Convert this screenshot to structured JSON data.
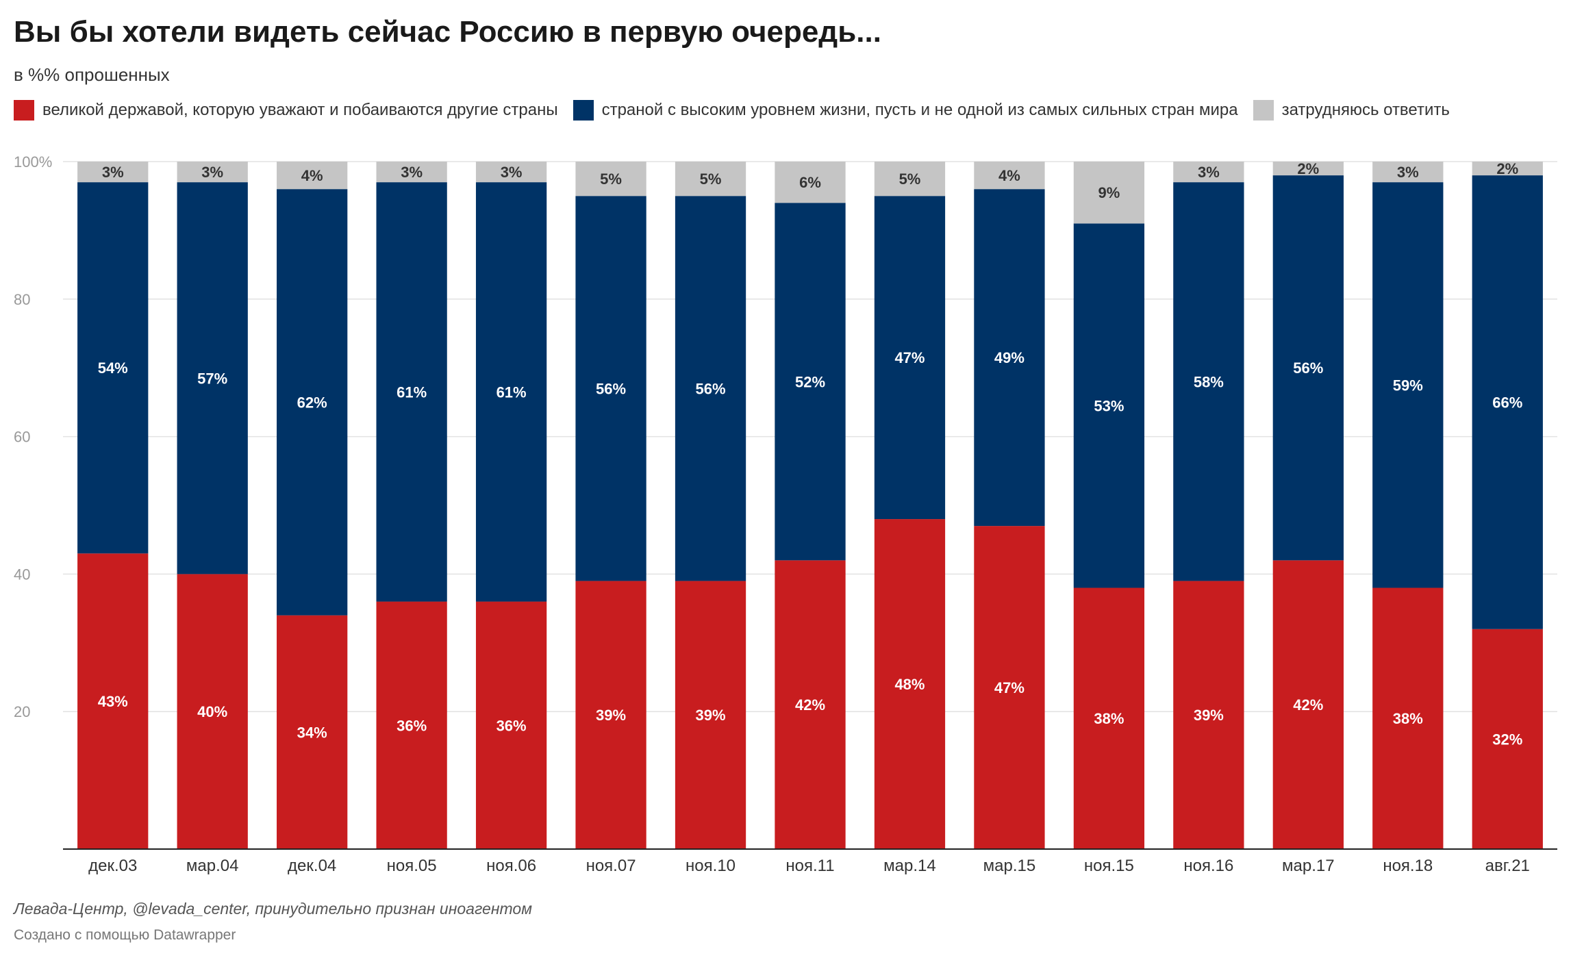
{
  "title": "Вы бы хотели видеть сейчас Россию в первую очередь...",
  "subtitle": "в %% опрошенных",
  "legend": [
    {
      "label": "великой державой, которую уважают и побаиваются другие страны",
      "color": "#c81d1f"
    },
    {
      "label": "страной с высоким уровнем жизни, пусть и не одной из самых сильных стран мира",
      "color": "#003366"
    },
    {
      "label": "затрудняюсь ответить",
      "color": "#c5c5c5"
    }
  ],
  "notes": "Левада-Центр, @levada_center, принудительно признан иноагентом",
  "credit": "Создано с помощью Datawrapper",
  "chart_data": {
    "type": "bar",
    "stacked": true,
    "categories": [
      "дек.03",
      "мар.04",
      "дек.04",
      "ноя.05",
      "ноя.06",
      "ноя.07",
      "ноя.10",
      "ноя.11",
      "мар.14",
      "мар.15",
      "ноя.15",
      "ноя.16",
      "мар.17",
      "ноя.18",
      "авг.21"
    ],
    "series": [
      {
        "name": "великой державой, которую уважают и побаиваются другие страны",
        "color": "#c81d1f",
        "values": [
          43,
          40,
          34,
          36,
          36,
          39,
          39,
          42,
          48,
          47,
          38,
          39,
          42,
          38,
          32
        ]
      },
      {
        "name": "страной с высоким уровнем жизни, пусть и не одной из самых сильных стран мира",
        "color": "#003366",
        "values": [
          54,
          57,
          62,
          61,
          61,
          56,
          56,
          52,
          47,
          49,
          53,
          58,
          56,
          59,
          66
        ]
      },
      {
        "name": "затрудняюсь ответить",
        "color": "#c5c5c5",
        "values": [
          3,
          3,
          4,
          3,
          3,
          5,
          5,
          6,
          5,
          4,
          9,
          3,
          2,
          3,
          2
        ]
      }
    ],
    "value_suffix": "%",
    "ylim": [
      0,
      100
    ],
    "yticks": [
      {
        "value": 20,
        "label": "20"
      },
      {
        "value": 40,
        "label": "40"
      },
      {
        "value": 60,
        "label": "60"
      },
      {
        "value": 80,
        "label": "80"
      },
      {
        "value": 100,
        "label": "100%"
      }
    ],
    "grid": true
  }
}
